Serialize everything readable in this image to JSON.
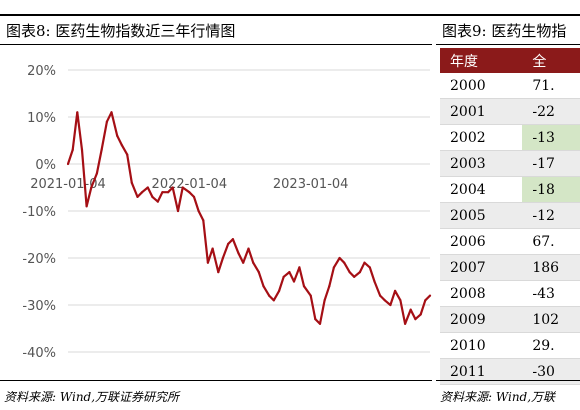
{
  "left": {
    "title": "图表8:  医药生物指数近三年行情图",
    "source": "资料来源:  Wind,万联证券研究所"
  },
  "right": {
    "title": "图表9:  医药生物指",
    "source": "资料来源:  Wind,万联",
    "header": [
      "年度",
      "全"
    ],
    "rows": [
      {
        "year": "2000",
        "value": "71.",
        "negative": false
      },
      {
        "year": "2001",
        "value": "-22",
        "negative": true
      },
      {
        "year": "2002",
        "value": "-13",
        "negative": true
      },
      {
        "year": "2003",
        "value": "-17",
        "negative": true
      },
      {
        "year": "2004",
        "value": "-18",
        "negative": true
      },
      {
        "year": "2005",
        "value": "-12",
        "negative": true
      },
      {
        "year": "2006",
        "value": "67.",
        "negative": false
      },
      {
        "year": "2007",
        "value": "186",
        "negative": false
      },
      {
        "year": "2008",
        "value": "-43",
        "negative": false
      },
      {
        "year": "2009",
        "value": "102",
        "negative": false
      },
      {
        "year": "2010",
        "value": "29.",
        "negative": false
      },
      {
        "year": "2011",
        "value": "-30",
        "negative": false
      }
    ],
    "header_color": "#8b1a1a",
    "negative_fill": "#d4e6c6"
  },
  "chart_data": {
    "type": "line",
    "title": "",
    "xlabel": "",
    "ylabel": "",
    "ylim": [
      -40,
      20
    ],
    "yticks": [
      "20%",
      "10%",
      "0%",
      "-10%",
      "-20%",
      "-30%",
      "-40%"
    ],
    "xticks": [
      "2021-01-04",
      "2022-01-04",
      "2023-01-04"
    ],
    "grid": true,
    "line_color": "#a50f15",
    "series": [
      {
        "x": [
          "2021-01-04",
          "2021-01-18",
          "2021-02-01",
          "2021-02-15",
          "2021-03-01",
          "2021-03-15",
          "2021-04-01",
          "2021-04-15",
          "2021-05-01",
          "2021-05-15",
          "2021-06-01",
          "2021-06-15",
          "2021-07-01",
          "2021-07-15",
          "2021-08-01",
          "2021-08-15",
          "2021-09-01",
          "2021-09-15",
          "2021-10-01",
          "2021-10-15",
          "2021-11-01",
          "2021-11-15",
          "2021-12-01",
          "2021-12-15",
          "2022-01-04",
          "2022-01-18",
          "2022-02-01",
          "2022-02-15",
          "2022-03-01",
          "2022-03-15",
          "2022-04-01",
          "2022-04-15",
          "2022-05-01",
          "2022-05-15",
          "2022-06-01",
          "2022-06-15",
          "2022-07-01",
          "2022-07-15",
          "2022-08-01",
          "2022-08-15",
          "2022-09-01",
          "2022-09-15",
          "2022-10-01",
          "2022-10-15",
          "2022-11-01",
          "2022-11-15",
          "2022-12-01",
          "2022-12-15",
          "2023-01-04",
          "2023-01-18",
          "2023-02-01",
          "2023-02-15",
          "2023-03-01",
          "2023-03-15",
          "2023-04-01",
          "2023-04-15",
          "2023-05-01",
          "2023-05-15",
          "2023-06-01",
          "2023-06-15",
          "2023-07-01",
          "2023-07-15",
          "2023-08-01",
          "2023-08-15",
          "2023-09-01",
          "2023-09-15",
          "2023-10-01",
          "2023-10-15",
          "2023-11-01",
          "2023-11-15",
          "2023-12-01",
          "2023-12-15",
          "2023-12-29"
        ],
        "values": [
          0,
          3,
          11,
          3,
          -9,
          -5,
          -2,
          3,
          9,
          11,
          6,
          4,
          2,
          -4,
          -7,
          -6,
          -5,
          -7,
          -8,
          -6,
          -6,
          -5,
          -10,
          -5,
          -6,
          -7,
          -10,
          -12,
          -21,
          -18,
          -23,
          -20,
          -17,
          -16,
          -19,
          -21,
          -18,
          -21,
          -23,
          -26,
          -28,
          -29,
          -27,
          -24,
          -23,
          -25,
          -22,
          -26,
          -28,
          -33,
          -34,
          -29,
          -26,
          -22,
          -20,
          -21,
          -23,
          -24,
          -23,
          -21,
          -22,
          -25,
          -28,
          -29,
          -30,
          -27,
          -29,
          -34,
          -31,
          -33,
          -32,
          -29,
          -28
        ]
      }
    ]
  }
}
